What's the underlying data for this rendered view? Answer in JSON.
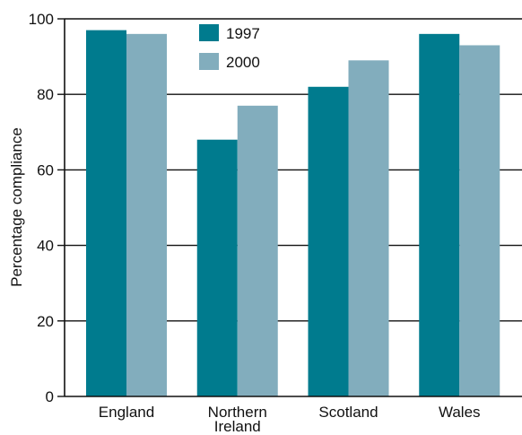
{
  "chart_data": {
    "type": "bar",
    "title": "",
    "xlabel": "",
    "ylabel": "Percentage compliance",
    "categories": [
      {
        "lines": [
          "England"
        ]
      },
      {
        "lines": [
          "Northern",
          "Ireland"
        ]
      },
      {
        "lines": [
          "Scotland"
        ]
      },
      {
        "lines": [
          "Wales"
        ]
      }
    ],
    "series": [
      {
        "name": "1997",
        "color": "#007b8e",
        "values": [
          97,
          68,
          82,
          96
        ]
      },
      {
        "name": "2000",
        "color": "#82adbd",
        "values": [
          96,
          77,
          89,
          93
        ]
      }
    ],
    "ylim": [
      0,
      100
    ],
    "yticks": [
      0,
      20,
      40,
      60,
      80,
      100
    ],
    "grid": true,
    "legend_position": "top-center"
  }
}
